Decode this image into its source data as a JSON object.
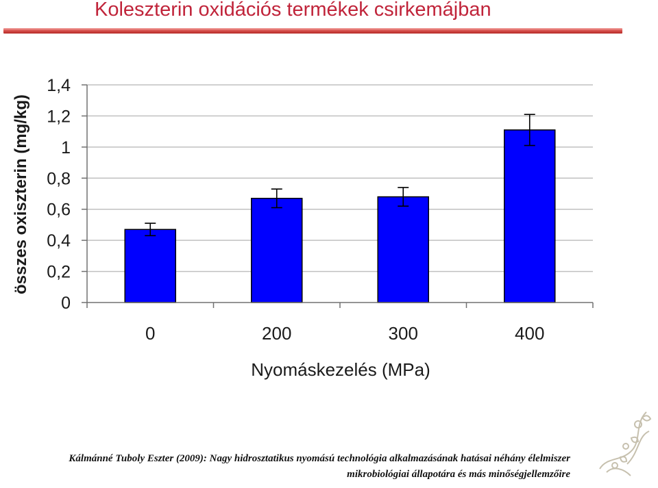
{
  "slide": {
    "title": "Koleszterin oxidációs termékek csirkemájban",
    "citation_line1": "Kálmánné Tuboly Eszter (2009): Nagy hidrosztatikus nyomású technológia alkalmazásának hatásai néhány élelmiszer",
    "citation_line2": "mikrobiológiai állapotára és más minőségjellemzőire"
  },
  "colors": {
    "title": "#c0243a",
    "bar": "#0000ff",
    "bar_outline": "#000000",
    "grid": "#c0c0c0"
  },
  "chart_data": {
    "type": "bar",
    "xlabel": "Nyomáskezelés (MPa)",
    "ylabel": "összes oxiszterin (mg/kg)",
    "categories": [
      "0",
      "200",
      "300",
      "400"
    ],
    "values": [
      0.47,
      0.67,
      0.68,
      1.11
    ],
    "errors": [
      0.04,
      0.06,
      0.06,
      0.1
    ],
    "ylim": [
      0,
      1.4
    ],
    "yticks": [
      0,
      0.2,
      0.4,
      0.6,
      0.8,
      1,
      1.2,
      1.4
    ],
    "ytick_labels": [
      "0",
      "0,2",
      "0,4",
      "0,6",
      "0,8",
      "1",
      "1,2",
      "1,4"
    ],
    "grid": true,
    "legend": "none"
  }
}
